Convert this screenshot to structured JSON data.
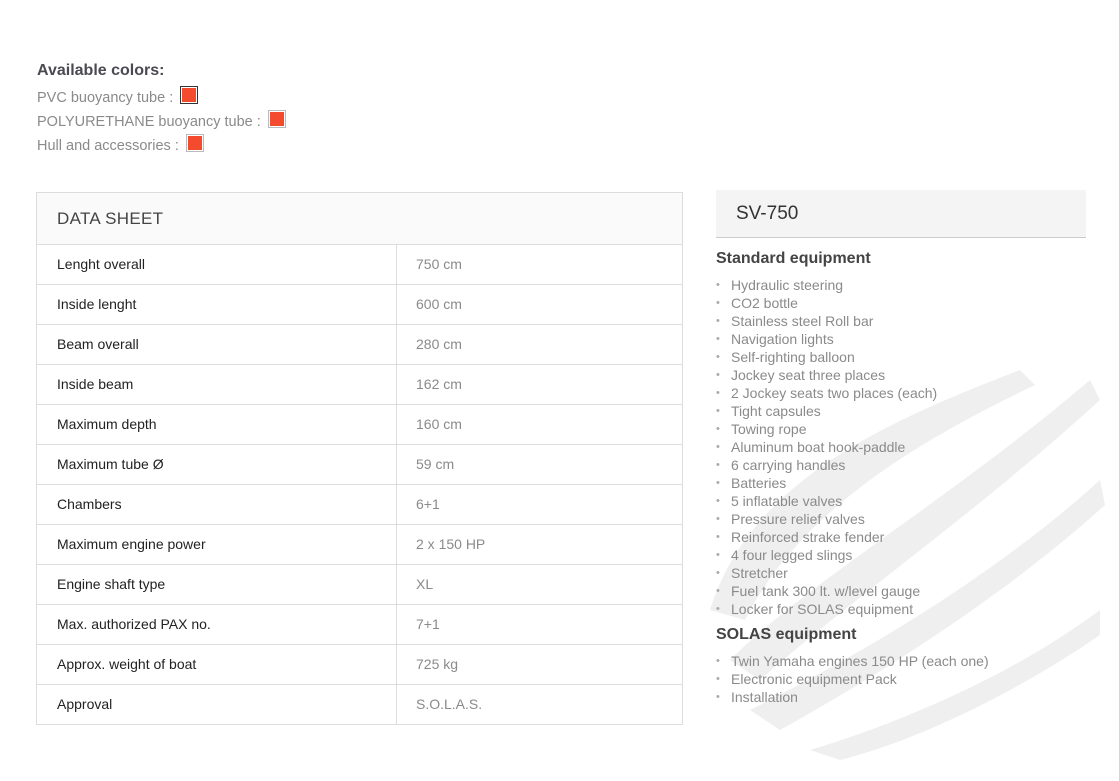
{
  "colors": {
    "title": "Available colors:",
    "items": [
      {
        "label": "PVC buoyancy tube :",
        "color": "#f44a2e",
        "selected": true
      },
      {
        "label": "POLYURETHANE buoyancy tube :",
        "color": "#f44a2e",
        "selected": false
      },
      {
        "label": "Hull and accessories :",
        "color": "#f44a2e",
        "selected": false
      }
    ]
  },
  "datasheet": {
    "title": "DATA SHEET",
    "rows": [
      {
        "k": "Lenght overall",
        "v": "750 cm"
      },
      {
        "k": "Inside lenght",
        "v": "600 cm"
      },
      {
        "k": "Beam overall",
        "v": "280 cm"
      },
      {
        "k": "Inside beam",
        "v": "162 cm"
      },
      {
        "k": "Maximum depth",
        "v": "160 cm"
      },
      {
        "k": "Maximum tube Ø",
        "v": "59 cm"
      },
      {
        "k": "Chambers",
        "v": "6+1"
      },
      {
        "k": "Maximum engine power",
        "v": "2 x 150 HP"
      },
      {
        "k": "Engine shaft type",
        "v": "XL"
      },
      {
        "k": "Max. authorized PAX no.",
        "v": "7+1"
      },
      {
        "k": "Approx. weight of boat",
        "v": "725 kg"
      },
      {
        "k": "Approval",
        "v": "S.O.L.A.S."
      }
    ]
  },
  "side": {
    "model": "SV-750",
    "standard_title": "Standard equipment",
    "standard": [
      "Hydraulic steering",
      "CO2 bottle",
      "Stainless steel Roll bar",
      "Navigation lights",
      "Self-righting balloon",
      "Jockey seat three places",
      "2 Jockey seats two places (each)",
      "Tight capsules",
      "Towing rope",
      "Aluminum boat hook-paddle",
      "6 carrying handles",
      "Batteries",
      "5 inflatable valves",
      "Pressure relief valves",
      "Reinforced strake fender",
      "4 four legged slings",
      "Stretcher",
      "Fuel tank 300 lt. w/level gauge",
      "Locker for SOLAS equipment"
    ],
    "solas_title": "SOLAS equipment",
    "solas": [
      "Twin Yamaha engines 150 HP (each one)",
      "Electronic equipment Pack",
      "Installation"
    ]
  }
}
